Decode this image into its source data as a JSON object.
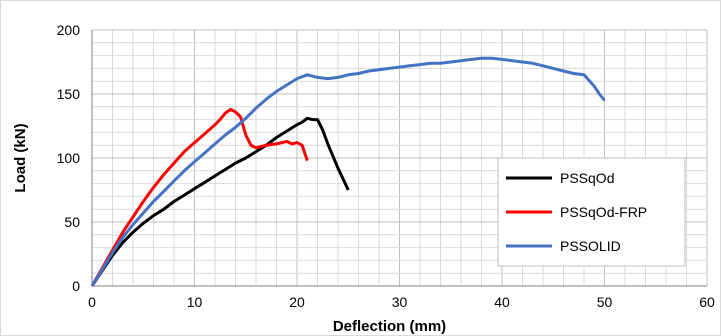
{
  "chart_data": {
    "type": "line",
    "title": "",
    "xlabel": "Deflection (mm)",
    "ylabel": "Load (kN)",
    "xlim": [
      0,
      60
    ],
    "ylim": [
      0,
      200
    ],
    "x_ticks": [
      "0",
      "10",
      "20",
      "30",
      "40",
      "50",
      "60"
    ],
    "y_ticks": [
      "0",
      "50",
      "100",
      "150",
      "200"
    ],
    "grid": true,
    "legend_position": "bottom-right",
    "series": [
      {
        "name": "PSSqOd",
        "color": "#000000",
        "points": [
          [
            0,
            0
          ],
          [
            1,
            12
          ],
          [
            2,
            24
          ],
          [
            3,
            34
          ],
          [
            4,
            42
          ],
          [
            5,
            49
          ],
          [
            6,
            55
          ],
          [
            7,
            60
          ],
          [
            8,
            66
          ],
          [
            9,
            71
          ],
          [
            10,
            76
          ],
          [
            11,
            81
          ],
          [
            12,
            86
          ],
          [
            13,
            91
          ],
          [
            14,
            96
          ],
          [
            15,
            100
          ],
          [
            16,
            105
          ],
          [
            17,
            110
          ],
          [
            18,
            116
          ],
          [
            19,
            121
          ],
          [
            20,
            126
          ],
          [
            20.5,
            128
          ],
          [
            21,
            131
          ],
          [
            21.5,
            130
          ],
          [
            22,
            130
          ],
          [
            22.5,
            122
          ],
          [
            23,
            111
          ],
          [
            24,
            92
          ],
          [
            25,
            75
          ]
        ]
      },
      {
        "name": "PSSqOd-FRP",
        "color": "#ff0000",
        "points": [
          [
            0,
            0
          ],
          [
            1,
            14
          ],
          [
            2,
            28
          ],
          [
            3,
            42
          ],
          [
            4,
            54
          ],
          [
            5,
            66
          ],
          [
            6,
            77
          ],
          [
            7,
            87
          ],
          [
            8,
            96
          ],
          [
            9,
            105
          ],
          [
            10,
            112
          ],
          [
            11,
            119
          ],
          [
            12,
            126
          ],
          [
            12.5,
            130
          ],
          [
            13,
            135
          ],
          [
            13.5,
            138
          ],
          [
            14,
            136
          ],
          [
            14.5,
            132
          ],
          [
            15,
            118
          ],
          [
            15.5,
            110
          ],
          [
            16,
            108
          ],
          [
            17,
            110
          ],
          [
            18,
            111
          ],
          [
            19,
            113
          ],
          [
            19.5,
            111
          ],
          [
            20,
            112
          ],
          [
            20.5,
            110
          ],
          [
            21,
            98
          ]
        ]
      },
      {
        "name": "PSSOLID",
        "color": "#4472c4",
        "points": [
          [
            0,
            0
          ],
          [
            1,
            13
          ],
          [
            2,
            26
          ],
          [
            3,
            38
          ],
          [
            4,
            48
          ],
          [
            5,
            57
          ],
          [
            6,
            66
          ],
          [
            7,
            74
          ],
          [
            8,
            82
          ],
          [
            9,
            90
          ],
          [
            10,
            97
          ],
          [
            11,
            104
          ],
          [
            12,
            111
          ],
          [
            13,
            118
          ],
          [
            14,
            124
          ],
          [
            15,
            131
          ],
          [
            16,
            139
          ],
          [
            17,
            146
          ],
          [
            18,
            152
          ],
          [
            19,
            157
          ],
          [
            20,
            162
          ],
          [
            21,
            165
          ],
          [
            22,
            163
          ],
          [
            23,
            162
          ],
          [
            24,
            163
          ],
          [
            25,
            165
          ],
          [
            26,
            166
          ],
          [
            27,
            168
          ],
          [
            28,
            169
          ],
          [
            29,
            170
          ],
          [
            30,
            171
          ],
          [
            31,
            172
          ],
          [
            32,
            173
          ],
          [
            33,
            174
          ],
          [
            34,
            174
          ],
          [
            35,
            175
          ],
          [
            36,
            176
          ],
          [
            37,
            177
          ],
          [
            38,
            178
          ],
          [
            39,
            178
          ],
          [
            40,
            177
          ],
          [
            41,
            176
          ],
          [
            42,
            175
          ],
          [
            43,
            174
          ],
          [
            44,
            172
          ],
          [
            45,
            170
          ],
          [
            46,
            168
          ],
          [
            47,
            166
          ],
          [
            48,
            165
          ],
          [
            49,
            156
          ],
          [
            49.5,
            150
          ],
          [
            50,
            145
          ]
        ]
      }
    ]
  }
}
